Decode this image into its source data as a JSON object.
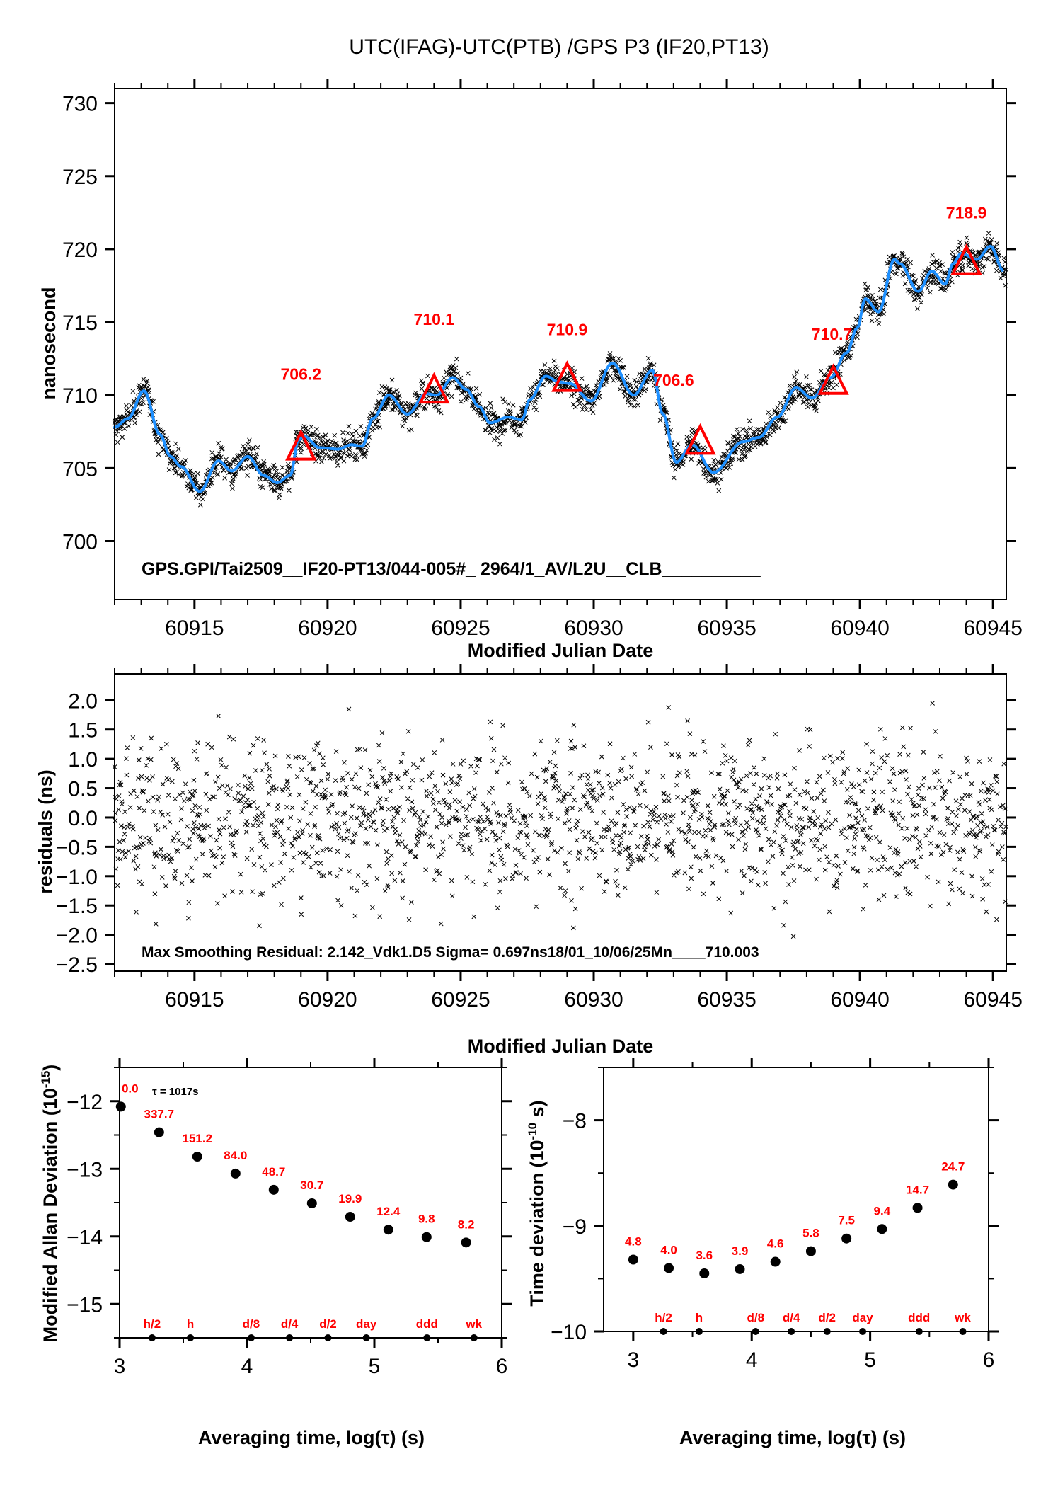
{
  "title": "UTC(IFAG)-UTC(PTB)  /GPS  P3  (IF20,PT13)",
  "colors": {
    "smooth_line": "#1e90ff",
    "marker_labels": "#ff0000",
    "triangles": "#ff0000",
    "points": "#000000"
  },
  "chart_data": [
    {
      "id": "time-series",
      "type": "scatter",
      "title": "UTC(IFAG)-UTC(PTB)  /GPS  P3  (IF20,PT13)",
      "xlabel": "Modified Julian Date",
      "ylabel": "nanosecond",
      "xlim": [
        60912.0,
        60945.5
      ],
      "ylim": [
        696,
        731
      ],
      "xticks": [
        60915,
        60920,
        60925,
        60930,
        60935,
        60940,
        60945
      ],
      "xtick_labels": [
        "60915",
        "60920",
        "60925",
        "60930",
        "60935",
        "60940",
        "60945"
      ],
      "yticks": [
        700,
        705,
        710,
        715,
        720,
        725,
        730
      ],
      "ytick_labels": [
        "700",
        "705",
        "710",
        "715",
        "720",
        "725",
        "730"
      ],
      "grid": false,
      "annotation": "GPS.GPI/Tai2509__IF20-PT13/044-005#_  2964/1_AV/L2U__CLB__________",
      "smoothed_series": {
        "name": "smoothed",
        "x": [
          60912.0,
          60912.5,
          60913.1,
          60913.7,
          60914.1,
          60914.5,
          60915.2,
          60915.9,
          60916.4,
          60917.0,
          60917.6,
          60918.1,
          60918.6,
          60918.9,
          60919.1,
          60919.7,
          60920.4,
          60920.9,
          60921.3,
          60921.7,
          60922.3,
          60923.0,
          60923.7,
          60924.1,
          60924.7,
          60925.2,
          60925.7,
          60926.1,
          60926.8,
          60927.3,
          60927.6,
          60928.2,
          60928.7,
          60929.1,
          60929.9,
          60930.7,
          60931.5,
          60932.2,
          60932.6,
          60933.1,
          60933.7,
          60934.5,
          60935.6,
          60936.2,
          60936.9,
          60937.6,
          60938.2,
          60938.9,
          60939.5,
          60939.9,
          60940.2,
          60940.7,
          60941.3,
          60941.5,
          60942.2,
          60942.7,
          60943.2,
          60943.5,
          60943.8,
          60944.4,
          60944.9,
          60945.4
        ],
        "y": [
          707.8,
          708.4,
          710.3,
          707.3,
          705.8,
          705.1,
          703.4,
          705.5,
          704.8,
          705.8,
          704.5,
          704.0,
          704.5,
          706.9,
          707.2,
          706.4,
          706.3,
          706.6,
          706.5,
          708.4,
          710.0,
          708.7,
          710.1,
          710.0,
          711.2,
          710.4,
          709.2,
          708.1,
          708.5,
          708.3,
          709.7,
          711.3,
          710.9,
          710.8,
          709.6,
          712.2,
          710.0,
          711.7,
          708.7,
          705.4,
          706.6,
          704.7,
          706.8,
          707.1,
          708.5,
          710.5,
          709.8,
          711.2,
          712.9,
          714.6,
          716.6,
          715.7,
          719.3,
          719.0,
          717.1,
          718.5,
          717.6,
          719.0,
          719.7,
          719.3,
          720.2,
          718.5
        ]
      },
      "markers": {
        "type": "triangle",
        "x": [
          60919,
          60924,
          60929,
          60934,
          60939,
          60944
        ],
        "y": [
          706.2,
          710.1,
          710.9,
          706.6,
          710.7,
          718.9
        ],
        "labels": [
          "706.2",
          "710.1",
          "710.9",
          "706.6",
          "710.7",
          "718.9"
        ]
      },
      "raw_points": {
        "description": "dense cross markers scattered about the smoothed curve",
        "scatter_sigma_ns": 0.697
      }
    },
    {
      "id": "residuals",
      "type": "scatter",
      "xlabel": "Modified Julian Date",
      "ylabel": "residuals (ns)",
      "xlim": [
        60912.0,
        60945.5
      ],
      "ylim": [
        -2.62,
        2.45
      ],
      "xticks": [
        60915,
        60920,
        60925,
        60930,
        60935,
        60940,
        60945
      ],
      "xtick_labels": [
        "60915",
        "60920",
        "60925",
        "60930",
        "60935",
        "60940",
        "60945"
      ],
      "yticks": [
        2.0,
        1.5,
        1.0,
        0.5,
        0.0,
        -0.5,
        -1.0,
        -1.5,
        -2.0,
        -2.5
      ],
      "ytick_labels": [
        "2.0",
        "1.5",
        "1.0",
        "0.5",
        "0.0",
        "−0.5",
        "−1.0",
        "−1.5",
        "−2.0",
        "−2.5"
      ],
      "grid": false,
      "annotation": "Max Smoothing Residual: 2.142_Vdk1.D5  Sigma= 0.697ns18/01_10/06/25Mn____710.003",
      "max_residual": 2.142,
      "sigma_ns": 0.697,
      "mean": 710.003
    },
    {
      "id": "mdev",
      "type": "scatter",
      "xlabel": "Averaging time, log(τ) (s)",
      "ylabel": "Modified Allan Deviation (10",
      "ylabel_exponent": "-15",
      "ylabel_suffix": ")",
      "xlim": [
        3,
        6
      ],
      "ylim": [
        -15.5,
        -11.5
      ],
      "xticks": [
        3,
        4,
        5,
        6
      ],
      "xtick_labels": [
        "3",
        "4",
        "5",
        "6"
      ],
      "yticks": [
        -12,
        -13,
        -14,
        -15
      ],
      "ytick_labels": [
        "−12",
        "−13",
        "−14",
        "−15"
      ],
      "annotation": "τ = 1017s",
      "x": [
        3.01,
        3.31,
        3.61,
        3.91,
        4.21,
        4.51,
        4.81,
        5.11,
        5.41,
        5.72
      ],
      "y": [
        -12.08,
        -12.46,
        -12.82,
        -13.07,
        -13.31,
        -13.51,
        -13.71,
        -13.9,
        -14.01,
        -14.09
      ],
      "point_labels": [
        "0.0",
        "337.7",
        "151.2",
        "84.0",
        "48.7",
        "30.7",
        "19.9",
        "12.4",
        "9.8",
        "8.2"
      ]
    },
    {
      "id": "tdev",
      "type": "scatter",
      "xlabel": "Averaging time, log(τ) (s)",
      "ylabel": "Time deviation (10",
      "ylabel_exponent": "-10",
      "ylabel_suffix": " s)",
      "xlim": [
        2.75,
        6
      ],
      "ylim": [
        -10,
        -7.5
      ],
      "xticks": [
        3,
        4,
        5,
        6
      ],
      "xtick_labels": [
        "3",
        "4",
        "5",
        "6"
      ],
      "yticks": [
        -8,
        -9,
        -10
      ],
      "ytick_labels": [
        "−8",
        "−9",
        "−10"
      ],
      "x": [
        3.0,
        3.3,
        3.6,
        3.9,
        4.2,
        4.5,
        4.8,
        5.1,
        5.4,
        5.7
      ],
      "y": [
        -9.32,
        -9.4,
        -9.45,
        -9.41,
        -9.34,
        -9.24,
        -9.12,
        -9.03,
        -8.83,
        -8.61
      ],
      "point_labels": [
        "4.8",
        "4.0",
        "3.6",
        "3.9",
        "4.6",
        "5.8",
        "7.5",
        "9.4",
        "14.7",
        "24.7"
      ]
    }
  ],
  "time_markers": {
    "labels": [
      "h/2",
      "h",
      "d/8",
      "d/4",
      "d/2",
      "day",
      "ddd",
      "wk"
    ],
    "log_tau": [
      3.255,
      3.556,
      4.033,
      4.334,
      4.636,
      4.937,
      5.413,
      5.782
    ]
  }
}
